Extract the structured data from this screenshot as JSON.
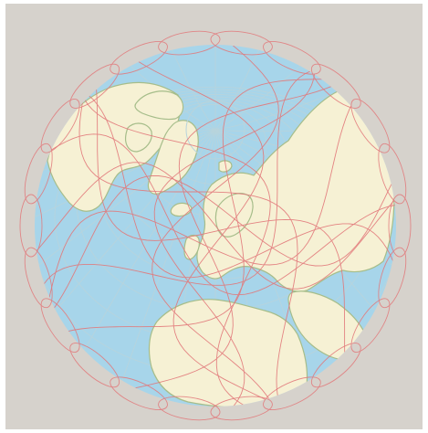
{
  "map": {
    "projection": "orthographic",
    "view": "north-polar-oblique",
    "colors": {
      "background": "#d6d2cc",
      "ocean": "#a7d5ea",
      "land": "#f6f1d4",
      "coast": "#a6bd8a",
      "graticule": "#b8d4dc",
      "orbit": "#e2787a"
    },
    "layers": [
      "ocean",
      "land",
      "graticule",
      "satellite-ground-track"
    ]
  }
}
